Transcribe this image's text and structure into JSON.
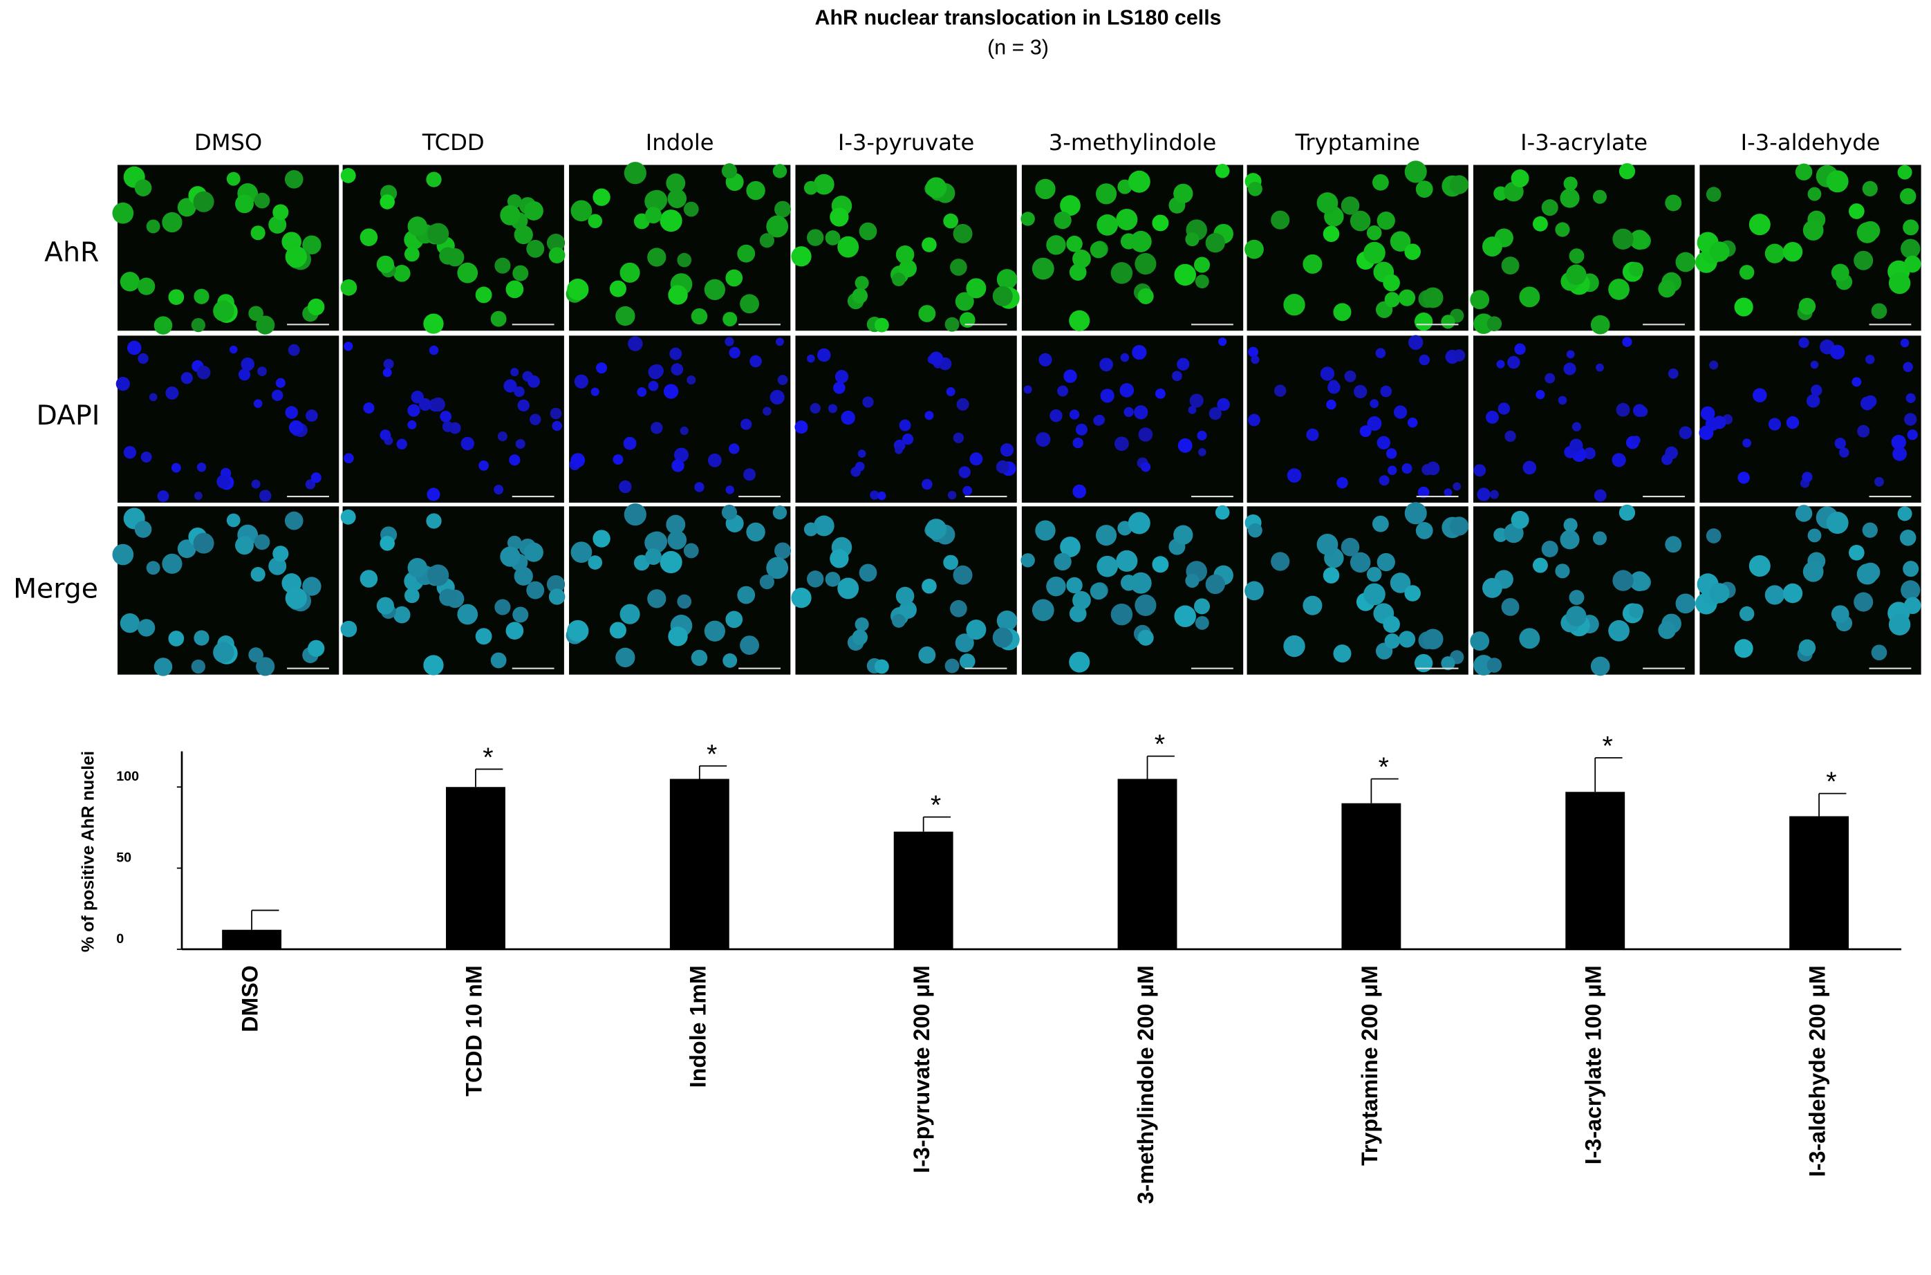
{
  "chart_data": {
    "type": "bar",
    "title": "AhR nuclear translocation in LS180 cells",
    "subtitle": "(n = 3)",
    "y_label": "% of positive AhR nuclei",
    "categories": [
      "DMSO",
      "TCDD 10 nM",
      "Indole 1mM",
      "I-3-pyruvate 200 μM",
      "3-methylindole 200 μM",
      "Tryptamine 200 μM",
      "I-3-acrylate 100 μM",
      "I-3-aldehyde 200 μM"
    ],
    "values": [
      12,
      100,
      105,
      72.5,
      105,
      90,
      97,
      82
    ],
    "errors": [
      12,
      11,
      8,
      9,
      14,
      15,
      21,
      14
    ],
    "significance": [
      null,
      "*",
      "*",
      "*",
      "*",
      "*",
      "*",
      "*"
    ],
    "color": "#000000",
    "ylim": [
      0,
      122
    ],
    "yticks": [
      0,
      50,
      100
    ]
  },
  "image_panel": {
    "columns": [
      "DMSO",
      "TCDD",
      "Indole",
      "I-3-pyruvate",
      "3-methylindole",
      "Tryptamine",
      "I-3-acrylate",
      "I-3-aldehyde"
    ],
    "rows": [
      "AhR",
      "DAPI",
      "Merge"
    ]
  }
}
